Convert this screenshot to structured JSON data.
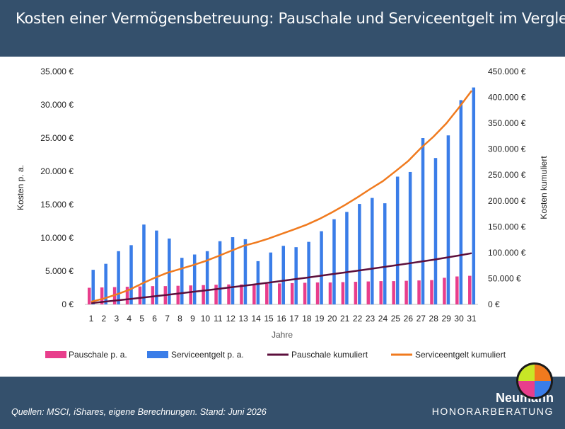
{
  "header": {
    "title": "Kosten einer Vermögensbetreuung: Pauschale und Serviceentgelt im Vergleich"
  },
  "footer": {
    "source": "Quellen: MSCI, iShares, eigene Berechnungen. Stand: Juni 2026"
  },
  "brand": {
    "name": "Neumann",
    "subtitle": "HONORARBERATUNG"
  },
  "colors": {
    "pauschale": "#e83e8c",
    "service": "#3a7de8",
    "pauschale_kum": "#5c0f3c",
    "service_kum": "#f07a1e",
    "logo": [
      "#f07a1e",
      "#3a7de8",
      "#e83e8c",
      "#c8e626"
    ]
  },
  "chart_data": {
    "type": "bar",
    "xlabel": "Jahre",
    "ylabel_left": "Kosten p. a.",
    "ylabel_right": "Kosten kumuliert",
    "ylim_left": [
      0,
      35000
    ],
    "ylim_right": [
      0,
      450000
    ],
    "left_ticks": [
      "0 €",
      "5.000 €",
      "10.000 €",
      "15.000 €",
      "20.000 €",
      "25.000 €",
      "30.000 €",
      "35.000 €"
    ],
    "right_ticks": [
      "0 €",
      "50.000 €",
      "100.000 €",
      "150.000 €",
      "200.000 €",
      "250.000 €",
      "300.000 €",
      "350.000 €",
      "400.000 €",
      "450.000 €"
    ],
    "grid": false,
    "legend_position": "bottom",
    "categories": [
      "1",
      "2",
      "3",
      "4",
      "5",
      "6",
      "7",
      "8",
      "9",
      "10",
      "11",
      "12",
      "13",
      "14",
      "15",
      "16",
      "17",
      "18",
      "19",
      "20",
      "21",
      "22",
      "23",
      "24",
      "25",
      "26",
      "27",
      "28",
      "29",
      "30",
      "31"
    ],
    "series": [
      {
        "name": "Pauschale  p. a.",
        "type": "bar",
        "axis": "left",
        "values": [
          2500,
          2550,
          2600,
          2650,
          2700,
          2750,
          2750,
          2800,
          2850,
          2900,
          2950,
          3000,
          3000,
          3050,
          3100,
          3150,
          3200,
          3250,
          3300,
          3300,
          3350,
          3400,
          3450,
          3500,
          3500,
          3550,
          3600,
          3650,
          4000,
          4200,
          4300
        ]
      },
      {
        "name": "Serviceentgelt p. a.",
        "type": "bar",
        "axis": "left",
        "values": [
          5200,
          6100,
          8000,
          8900,
          12000,
          11100,
          9900,
          7000,
          7500,
          8000,
          9500,
          10100,
          9800,
          6500,
          7800,
          8800,
          8600,
          9400,
          11000,
          12800,
          13900,
          15100,
          16000,
          15200,
          19200,
          19900,
          25000,
          22000,
          25400,
          30700,
          32600
        ]
      },
      {
        "name": "Pauschale kumuliert",
        "type": "line",
        "axis": "right",
        "values": [
          2500,
          5050,
          7650,
          10300,
          13000,
          15750,
          18500,
          21300,
          24150,
          27050,
          30000,
          33000,
          36000,
          39050,
          42150,
          45300,
          48500,
          51750,
          55050,
          58350,
          61700,
          65100,
          68550,
          72050,
          75550,
          79100,
          82700,
          86350,
          90350,
          94550,
          98850
        ]
      },
      {
        "name": "Serviceentgelt kumuliert",
        "type": "line",
        "axis": "right",
        "values": [
          5200,
          11300,
          19300,
          28200,
          40200,
          51300,
          61200,
          68200,
          75700,
          83700,
          93200,
          103300,
          113100,
          119600,
          127400,
          136200,
          144800,
          154200,
          165200,
          178000,
          191900,
          207000,
          223000,
          238200,
          257400,
          277300,
          302300,
          324300,
          349700,
          380400,
          413000
        ]
      }
    ]
  }
}
